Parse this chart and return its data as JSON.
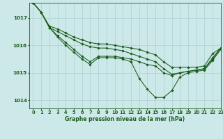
{
  "title": "Graphe pression niveau de la mer (hPa)",
  "bg_color": "#cce8e8",
  "grid_color": "#aad0d0",
  "line_color": "#1a5c1a",
  "marker_color": "#1a5c1a",
  "xlim": [
    -0.5,
    23
  ],
  "ylim": [
    1013.7,
    1017.55
  ],
  "xticks": [
    0,
    1,
    2,
    3,
    4,
    5,
    6,
    7,
    8,
    9,
    10,
    11,
    12,
    13,
    14,
    15,
    16,
    17,
    18,
    19,
    20,
    21,
    22,
    23
  ],
  "yticks": [
    1014,
    1015,
    1016,
    1017
  ],
  "series": [
    [
      1017.55,
      1017.2,
      1016.65,
      1016.3,
      1016.0,
      1015.75,
      1015.5,
      1015.3,
      1015.55,
      1015.55,
      1015.55,
      1015.5,
      1015.4,
      1014.8,
      1014.4,
      1014.1,
      1014.1,
      1014.35,
      1014.85,
      1015.0,
      1015.05,
      1015.1,
      1015.45,
      1015.85
    ],
    [
      1017.55,
      1017.2,
      1016.65,
      1016.35,
      1016.1,
      1015.85,
      1015.6,
      1015.4,
      1015.6,
      1015.6,
      1015.6,
      1015.55,
      1015.5,
      1015.4,
      1015.3,
      1015.25,
      1015.0,
      1014.9,
      1015.0,
      1015.05,
      1015.1,
      1015.15,
      1015.5,
      1015.9
    ],
    [
      1017.55,
      1017.2,
      1016.65,
      1016.5,
      1016.35,
      1016.2,
      1016.05,
      1015.95,
      1015.9,
      1015.9,
      1015.85,
      1015.8,
      1015.7,
      1015.6,
      1015.5,
      1015.4,
      1015.15,
      1014.95,
      1015.0,
      1015.05,
      1015.1,
      1015.15,
      1015.55,
      1015.9
    ],
    [
      1017.55,
      1017.2,
      1016.7,
      1016.6,
      1016.45,
      1016.3,
      1016.2,
      1016.1,
      1016.05,
      1016.05,
      1016.0,
      1015.95,
      1015.9,
      1015.85,
      1015.75,
      1015.65,
      1015.4,
      1015.2,
      1015.2,
      1015.2,
      1015.2,
      1015.25,
      1015.7,
      1015.9
    ]
  ]
}
